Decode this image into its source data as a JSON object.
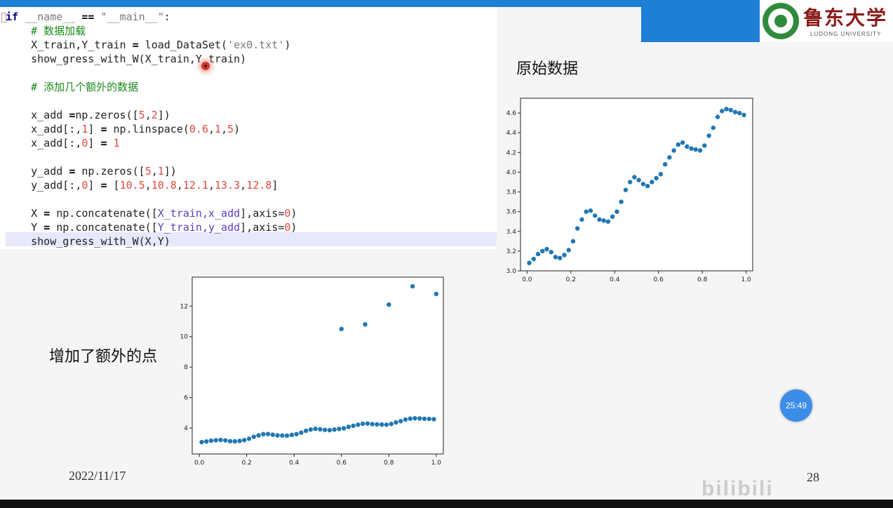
{
  "code": {
    "lines": [
      [
        {
          "t": "if",
          "c": "kw"
        },
        {
          "t": " "
        },
        {
          "t": "__name__",
          "c": "str"
        },
        {
          "t": " "
        },
        {
          "t": "==",
          "c": "op"
        },
        {
          "t": " "
        },
        {
          "t": "\"__main__\"",
          "c": "str"
        },
        {
          "t": ":"
        }
      ],
      [
        {
          "t": "    "
        },
        {
          "t": "# 数据加载",
          "c": "cm"
        }
      ],
      [
        {
          "t": "    X_train,Y_train "
        },
        {
          "t": "=",
          "c": "op"
        },
        {
          "t": " load_DataSet("
        },
        {
          "t": "'ex0.txt'",
          "c": "str"
        },
        {
          "t": ")"
        }
      ],
      [
        {
          "t": "    show_gress_with_W(X_train,Y_train)"
        }
      ],
      [],
      [
        {
          "t": "    "
        },
        {
          "t": "# 添加几个额外的数据",
          "c": "cm"
        }
      ],
      [],
      [
        {
          "t": "    x_add "
        },
        {
          "t": "=",
          "c": "op"
        },
        {
          "t": "np.zeros(["
        },
        {
          "t": "5",
          "c": "num"
        },
        {
          "t": ","
        },
        {
          "t": "2",
          "c": "num"
        },
        {
          "t": "])"
        }
      ],
      [
        {
          "t": "    x_add[:,"
        },
        {
          "t": "1",
          "c": "num"
        },
        {
          "t": "] "
        },
        {
          "t": "=",
          "c": "op"
        },
        {
          "t": " np.linspace("
        },
        {
          "t": "0.6",
          "c": "num"
        },
        {
          "t": ","
        },
        {
          "t": "1",
          "c": "num"
        },
        {
          "t": ","
        },
        {
          "t": "5",
          "c": "num"
        },
        {
          "t": ")"
        }
      ],
      [
        {
          "t": "    x_add[:,"
        },
        {
          "t": "0",
          "c": "num"
        },
        {
          "t": "] "
        },
        {
          "t": "=",
          "c": "op"
        },
        {
          "t": " "
        },
        {
          "t": "1",
          "c": "num"
        }
      ],
      [],
      [
        {
          "t": "    y_add "
        },
        {
          "t": "=",
          "c": "op"
        },
        {
          "t": " np.zeros(["
        },
        {
          "t": "5",
          "c": "num"
        },
        {
          "t": ","
        },
        {
          "t": "1",
          "c": "num"
        },
        {
          "t": "])"
        }
      ],
      [
        {
          "t": "    y_add[:,"
        },
        {
          "t": "0",
          "c": "num"
        },
        {
          "t": "] "
        },
        {
          "t": "=",
          "c": "op"
        },
        {
          "t": " ["
        },
        {
          "t": "10.5",
          "c": "num"
        },
        {
          "t": ","
        },
        {
          "t": "10.8",
          "c": "num"
        },
        {
          "t": ","
        },
        {
          "t": "12.1",
          "c": "num"
        },
        {
          "t": ","
        },
        {
          "t": "13.3",
          "c": "num"
        },
        {
          "t": ","
        },
        {
          "t": "12.8",
          "c": "num"
        },
        {
          "t": "]"
        }
      ],
      [],
      [
        {
          "t": "    X "
        },
        {
          "t": "=",
          "c": "op"
        },
        {
          "t": " np.concatenate(["
        },
        {
          "t": "X_train,x_add",
          "c": "bp"
        },
        {
          "t": "],axis="
        },
        {
          "t": "0",
          "c": "num"
        },
        {
          "t": ")"
        }
      ],
      [
        {
          "t": "    Y "
        },
        {
          "t": "=",
          "c": "op"
        },
        {
          "t": " np.concatenate(["
        },
        {
          "t": "Y_train,y_add",
          "c": "bp"
        },
        {
          "t": "],axis="
        },
        {
          "t": "0",
          "c": "num"
        },
        {
          "t": ")"
        }
      ],
      [
        {
          "t": "    show_gress_with_W(X,Y)"
        }
      ]
    ]
  },
  "slide": {
    "title_right": "原始数据",
    "title_left": "增加了额外的点",
    "date": "2022/11/17",
    "page_number": "28",
    "timer": "25:49",
    "watermark": "bilibili"
  },
  "logo": {
    "name_cn": "鲁东大学",
    "name_en": "LUDONG UNIVERSITY"
  },
  "colors": {
    "accent": "#1e7fd6",
    "point": "#1f77b4",
    "logo_green": "#2e8b3a",
    "logo_red": "#8b1a1a"
  },
  "chart_data": [
    {
      "type": "scatter",
      "title": "",
      "xlim": [
        -0.03,
        1.03
      ],
      "ylim": [
        3.0,
        4.75
      ],
      "xticks": [
        "0.0",
        "0.2",
        "0.4",
        "0.6",
        "0.8",
        "1.0"
      ],
      "yticks": [
        "3.0",
        "3.2",
        "3.4",
        "3.6",
        "3.8",
        "4.0",
        "4.2",
        "4.4",
        "4.6"
      ],
      "x": [
        0.01,
        0.03,
        0.05,
        0.07,
        0.09,
        0.11,
        0.13,
        0.15,
        0.17,
        0.19,
        0.21,
        0.23,
        0.25,
        0.27,
        0.29,
        0.31,
        0.33,
        0.35,
        0.37,
        0.39,
        0.41,
        0.43,
        0.45,
        0.47,
        0.49,
        0.51,
        0.53,
        0.55,
        0.57,
        0.59,
        0.61,
        0.63,
        0.65,
        0.67,
        0.69,
        0.71,
        0.73,
        0.75,
        0.77,
        0.79,
        0.81,
        0.83,
        0.85,
        0.87,
        0.89,
        0.91,
        0.93,
        0.95,
        0.97,
        0.99
      ],
      "y": [
        3.08,
        3.12,
        3.17,
        3.2,
        3.22,
        3.19,
        3.14,
        3.13,
        3.16,
        3.21,
        3.3,
        3.43,
        3.52,
        3.6,
        3.61,
        3.56,
        3.52,
        3.51,
        3.5,
        3.55,
        3.6,
        3.7,
        3.82,
        3.9,
        3.95,
        3.92,
        3.88,
        3.86,
        3.9,
        3.94,
        3.98,
        4.08,
        4.15,
        4.22,
        4.28,
        4.3,
        4.26,
        4.24,
        4.23,
        4.22,
        4.27,
        4.37,
        4.45,
        4.56,
        4.62,
        4.64,
        4.63,
        4.61,
        4.6,
        4.58
      ]
    },
    {
      "type": "scatter",
      "title": "",
      "xlim": [
        -0.03,
        1.03
      ],
      "ylim": [
        2.3,
        13.9
      ],
      "xticks": [
        "0.0",
        "0.2",
        "0.4",
        "0.6",
        "0.8",
        "1.0"
      ],
      "yticks": [
        "4",
        "6",
        "8",
        "10",
        "12"
      ],
      "x": [
        0.01,
        0.03,
        0.05,
        0.07,
        0.09,
        0.11,
        0.13,
        0.15,
        0.17,
        0.19,
        0.21,
        0.23,
        0.25,
        0.27,
        0.29,
        0.31,
        0.33,
        0.35,
        0.37,
        0.39,
        0.41,
        0.43,
        0.45,
        0.47,
        0.49,
        0.51,
        0.53,
        0.55,
        0.57,
        0.59,
        0.61,
        0.63,
        0.65,
        0.67,
        0.69,
        0.71,
        0.73,
        0.75,
        0.77,
        0.79,
        0.81,
        0.83,
        0.85,
        0.87,
        0.89,
        0.91,
        0.93,
        0.95,
        0.97,
        0.99,
        0.6,
        0.7,
        0.8,
        0.9,
        1.0
      ],
      "y": [
        3.08,
        3.12,
        3.17,
        3.2,
        3.22,
        3.19,
        3.14,
        3.13,
        3.16,
        3.21,
        3.3,
        3.43,
        3.52,
        3.6,
        3.61,
        3.56,
        3.52,
        3.51,
        3.5,
        3.55,
        3.6,
        3.7,
        3.82,
        3.9,
        3.95,
        3.92,
        3.88,
        3.86,
        3.9,
        3.94,
        3.98,
        4.08,
        4.15,
        4.22,
        4.28,
        4.3,
        4.26,
        4.24,
        4.23,
        4.22,
        4.27,
        4.37,
        4.45,
        4.56,
        4.62,
        4.64,
        4.63,
        4.61,
        4.6,
        4.58,
        10.5,
        10.8,
        12.1,
        13.3,
        12.8
      ]
    }
  ]
}
